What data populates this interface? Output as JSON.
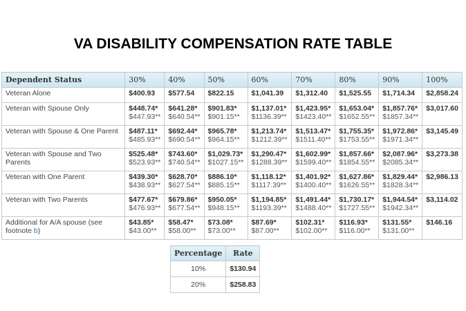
{
  "title": "VA DISABILITY COMPENSATION RATE TABLE",
  "table": {
    "headers": [
      "Dependent Status",
      "30%",
      "40%",
      "50%",
      "60%",
      "70%",
      "80%",
      "90%",
      "100%"
    ],
    "rows": [
      {
        "label": "Veteran Alone",
        "cells": [
          [
            "$400.93"
          ],
          [
            "$577.54"
          ],
          [
            "$822.15"
          ],
          [
            "$1,041.39"
          ],
          [
            "$1,312.40"
          ],
          [
            "$1,525.55"
          ],
          [
            "$1,714.34"
          ],
          [
            "$2,858.24"
          ]
        ]
      },
      {
        "label": "Veteran with Spouse Only",
        "cells": [
          [
            "$448.74*",
            "$447.93**"
          ],
          [
            "$641.28*",
            "$640.54**"
          ],
          [
            "$901.83*",
            "$901.15**"
          ],
          [
            "$1,137.01*",
            "$1136.39**"
          ],
          [
            "$1,423.95*",
            "$1423.40**"
          ],
          [
            "$1,653.04*",
            "$1652.55**"
          ],
          [
            "$1,857.76*",
            "$1857.34**"
          ],
          [
            "$3,017.60"
          ]
        ]
      },
      {
        "label": "Veteran with Spouse & One Parent",
        "cells": [
          [
            "$487.11*",
            "$485.93**"
          ],
          [
            "$692.44*",
            "$690.54**"
          ],
          [
            "$965.78*",
            "$964.15**"
          ],
          [
            "$1,213.74*",
            "$1212.39**"
          ],
          [
            "$1,513.47*",
            "$1511.40**"
          ],
          [
            "$1,755.35*",
            "$1753.55**"
          ],
          [
            "$1,972.86*",
            "$1971.34**"
          ],
          [
            "$3,145.49"
          ]
        ]
      },
      {
        "label": "Veteran with Spouse and Two Parents",
        "cells": [
          [
            "$525.48*",
            "$523.93**"
          ],
          [
            "$743.60*",
            "$740.54**"
          ],
          [
            "$1,029.73*",
            "$1027.15**"
          ],
          [
            "$1,290.47*",
            "$1288.39**"
          ],
          [
            "$1,602.99*",
            "$1599.40**"
          ],
          [
            "$1,857.66*",
            "$1854.55**"
          ],
          [
            "$2,087.96*",
            "$2085.34**"
          ],
          [
            "$3,273.38"
          ]
        ]
      },
      {
        "label": "Veteran with One Parent",
        "cells": [
          [
            "$439.30*",
            "$438.93**"
          ],
          [
            "$628.70*",
            "$627.54**"
          ],
          [
            "$886.10*",
            "$885.15**"
          ],
          [
            "$1,118.12*",
            "$1117.39**"
          ],
          [
            "$1,401.92*",
            "$1400.40**"
          ],
          [
            "$1,627.86*",
            "$1626.55**"
          ],
          [
            "$1,829.44*",
            "$1828.34**"
          ],
          [
            "$2,986.13"
          ]
        ]
      },
      {
        "label": "Veteran with Two Parents",
        "cells": [
          [
            "$477.67*",
            "$476.93**"
          ],
          [
            "$679.86*",
            "$677.54**"
          ],
          [
            "$950.05*",
            "$948.15**"
          ],
          [
            "$1,194.85*",
            "$1193.39**"
          ],
          [
            "$1,491.44*",
            "$1488.40**"
          ],
          [
            "$1,730.17*",
            "$1727.55**"
          ],
          [
            "$1,944.54*",
            "$1942.34**"
          ],
          [
            "$3,114.02"
          ]
        ]
      },
      {
        "label": "Additional for A/A spouse (see footnote ",
        "link": "b",
        "label_end": ")",
        "cells": [
          [
            "$43.85*",
            "$43.00**"
          ],
          [
            "$58.47*",
            "$58.00**"
          ],
          [
            "$73.08*",
            "$73.00**"
          ],
          [
            "$87.69*",
            "$87.00**"
          ],
          [
            "$102.31*",
            "$102.00**"
          ],
          [
            "$116.93*",
            "$116.00**"
          ],
          [
            "$131.55*",
            "$131.00**"
          ],
          [
            "$146.16"
          ]
        ]
      }
    ]
  },
  "pct_table": {
    "headers": [
      "Percentage",
      "Rate"
    ],
    "rows": [
      [
        "10%",
        "$130.94"
      ],
      [
        "20%",
        "$258.83"
      ]
    ]
  },
  "colors": {
    "header_bg": "#d4e9f3",
    "link": "#3a6fb0"
  }
}
